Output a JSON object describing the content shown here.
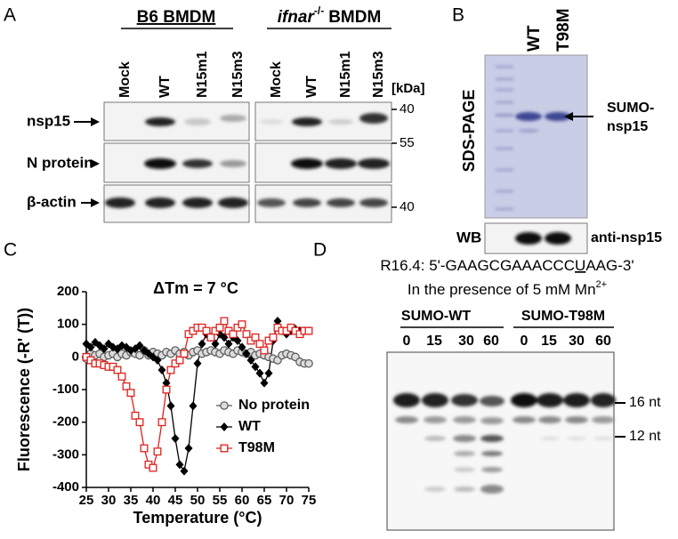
{
  "panel_labels": [
    "A",
    "B",
    "C",
    "D"
  ],
  "panel_a": {
    "groups": [
      {
        "header": "B6 BMDM",
        "lanes": [
          "Mock",
          "WT",
          "N15m1",
          "N15m3"
        ]
      },
      {
        "header": {
          "gene": "ifnar",
          "superscript": "-/-",
          "suffix": "BMDM"
        },
        "lanes": [
          "Mock",
          "WT",
          "N15m1",
          "N15m3"
        ]
      }
    ],
    "unit": "[kDa]",
    "rows": [
      "nsp15",
      "N protein",
      "β-actin"
    ],
    "markers": [
      "40",
      "55",
      "40"
    ]
  },
  "panel_b": {
    "lanes": [
      "WT",
      "T98M"
    ],
    "method": "SDS-PAGE",
    "band_label": [
      "SUMO-",
      "nsp15"
    ],
    "blot": "WB",
    "antibody": "anti-nsp15"
  },
  "chart_data": {
    "type": "line",
    "annotation": "ΔTm = 7 °C",
    "xlabel": "Temperature (°C)",
    "ylabel": "Fluorescence (-R' (T))",
    "x": [
      25,
      26,
      27,
      28,
      29,
      30,
      31,
      32,
      33,
      34,
      35,
      36,
      37,
      38,
      39,
      40,
      41,
      42,
      43,
      44,
      45,
      46,
      47,
      48,
      49,
      50,
      51,
      52,
      53,
      54,
      55,
      56,
      57,
      58,
      59,
      60,
      61,
      62,
      63,
      64,
      65,
      66,
      67,
      68,
      69,
      70,
      71,
      72,
      73,
      74,
      75
    ],
    "series": [
      {
        "name": "No protein",
        "color": "#555555",
        "marker": "circle",
        "values": [
          -5,
          10,
          5,
          10,
          0,
          5,
          10,
          0,
          10,
          5,
          15,
          10,
          5,
          20,
          5,
          15,
          10,
          5,
          15,
          10,
          20,
          10,
          15,
          5,
          15,
          20,
          10,
          15,
          20,
          15,
          10,
          20,
          15,
          10,
          20,
          15,
          10,
          15,
          5,
          10,
          5,
          0,
          -5,
          -10,
          5,
          10,
          5,
          0,
          -15,
          -20,
          -20
        ]
      },
      {
        "name": "WT",
        "color": "#000000",
        "marker": "diamond",
        "values": [
          40,
          30,
          45,
          35,
          25,
          40,
          30,
          25,
          35,
          30,
          20,
          25,
          35,
          20,
          10,
          0,
          -10,
          -40,
          -80,
          -150,
          -250,
          -330,
          -350,
          -280,
          -150,
          -20,
          40,
          70,
          60,
          40,
          70,
          60,
          40,
          60,
          50,
          30,
          10,
          -10,
          -30,
          -50,
          -80,
          -50,
          50,
          110,
          80,
          70,
          80,
          85,
          80,
          80,
          80
        ]
      },
      {
        "name": "T98M",
        "color": "#e0201c",
        "marker": "square",
        "values": [
          0,
          -10,
          -20,
          -20,
          -25,
          -30,
          -30,
          -40,
          -60,
          -90,
          -110,
          -180,
          -200,
          -280,
          -330,
          -340,
          -290,
          -200,
          -100,
          -40,
          -20,
          -10,
          10,
          70,
          80,
          90,
          90,
          80,
          60,
          80,
          90,
          110,
          80,
          70,
          90,
          100,
          70,
          50,
          60,
          40,
          20,
          50,
          60,
          90,
          80,
          80,
          90,
          80,
          70,
          80,
          80
        ]
      }
    ],
    "xlim": [
      25,
      75
    ],
    "xticks": [
      25,
      30,
      35,
      40,
      45,
      50,
      55,
      60,
      65,
      70,
      75
    ],
    "ylim": [
      -400,
      200
    ],
    "yticks": [
      -400,
      -300,
      -200,
      -100,
      0,
      100,
      200
    ],
    "legend": "lower right"
  },
  "panel_d": {
    "substrate": [
      "R16.4: 5'-GAAGCGAAACCC",
      "U",
      "AAG-3'"
    ],
    "condition": [
      "In the presence of 5 mM Mn",
      "2+"
    ],
    "groups": [
      {
        "name": "SUMO-WT",
        "times": [
          "0",
          "15",
          "30",
          "60"
        ]
      },
      {
        "name": "SUMO-T98M",
        "times": [
          "0",
          "15",
          "30",
          "60"
        ]
      }
    ],
    "markers": [
      "16 nt",
      "12 nt"
    ]
  }
}
